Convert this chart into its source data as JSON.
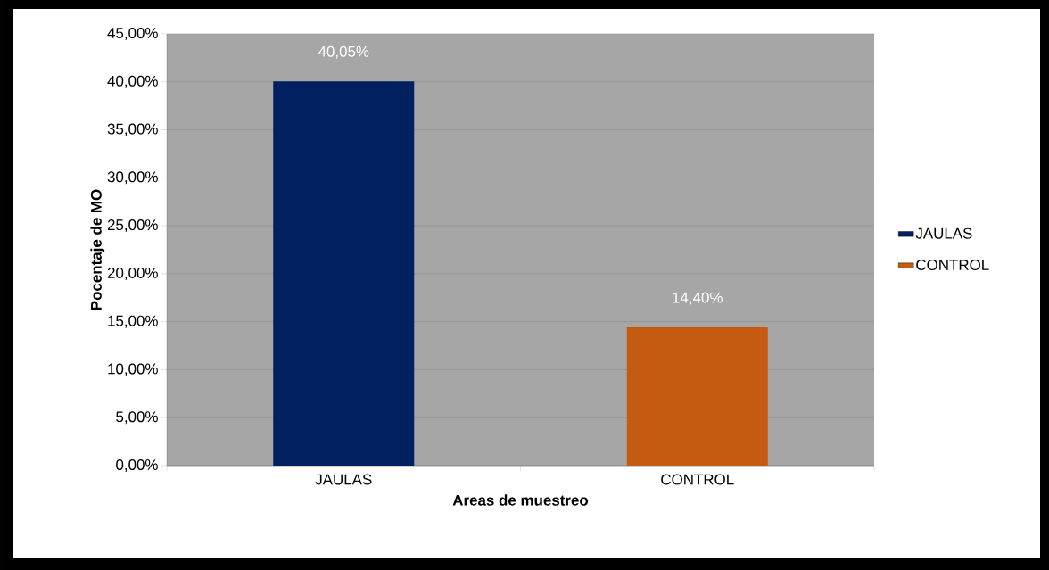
{
  "chart_data": {
    "type": "bar",
    "xlabel": "Areas de muestreo",
    "ylabel": "Pocentaje de MO",
    "categories": [
      "JAULAS",
      "CONTROL"
    ],
    "series": [
      {
        "name": "JAULAS",
        "color": "#002060",
        "values": [
          40.05,
          null
        ],
        "value_labels": [
          "40,05%",
          null
        ]
      },
      {
        "name": "CONTROL",
        "color": "#c55a11",
        "values": [
          null,
          14.4
        ],
        "value_labels": [
          null,
          "14,40%"
        ]
      }
    ],
    "ylim": [
      0,
      45
    ],
    "yticks": [
      {
        "value": 0,
        "label": "0,00%"
      },
      {
        "value": 5,
        "label": "5,00%"
      },
      {
        "value": 10,
        "label": "10,00%"
      },
      {
        "value": 15,
        "label": "15,00%"
      },
      {
        "value": 20,
        "label": "20,00%"
      },
      {
        "value": 25,
        "label": "25,00%"
      },
      {
        "value": 30,
        "label": "30,00%"
      },
      {
        "value": 35,
        "label": "35,00%"
      },
      {
        "value": 40,
        "label": "40,00%"
      },
      {
        "value": 45,
        "label": "45,00%"
      }
    ],
    "grid": "y",
    "legend": "right"
  }
}
